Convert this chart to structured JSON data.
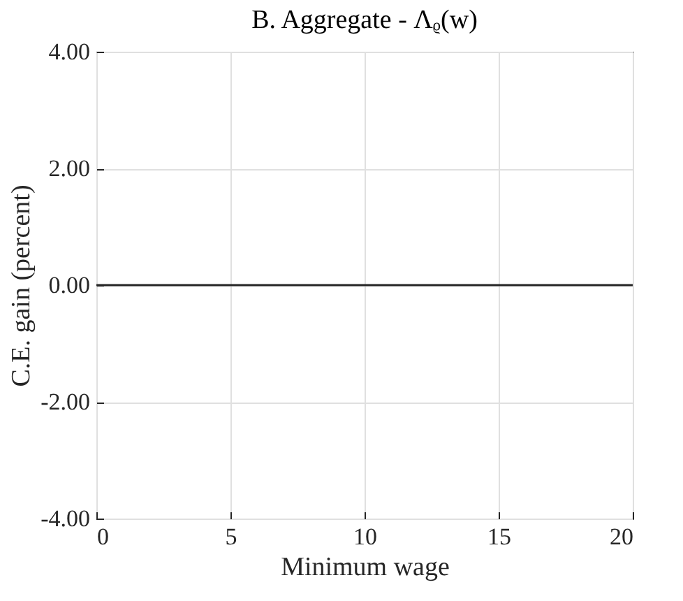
{
  "chart_data": {
    "type": "line",
    "title": "B. Aggregate - Λᵨ(w)",
    "xlabel": "Minimum wage",
    "ylabel": "C.E. gain (percent)",
    "x": [
      0,
      20
    ],
    "series": [
      {
        "color": "#262626",
        "values": [
          0,
          0
        ]
      }
    ],
    "xlim": [
      0,
      20
    ],
    "xticks": [
      0,
      5,
      10,
      15,
      20
    ],
    "ylim": [
      -4,
      4
    ],
    "yticks": [
      {
        "value": -4,
        "label": "-4.00"
      },
      {
        "value": -2,
        "label": "-2.00"
      },
      {
        "value": 0,
        "label": "0.00"
      },
      {
        "value": 2,
        "label": "2.00"
      },
      {
        "value": 4,
        "label": "4.00"
      }
    ],
    "grid": true,
    "legend": false,
    "marker": "none",
    "line_style": "solid"
  }
}
